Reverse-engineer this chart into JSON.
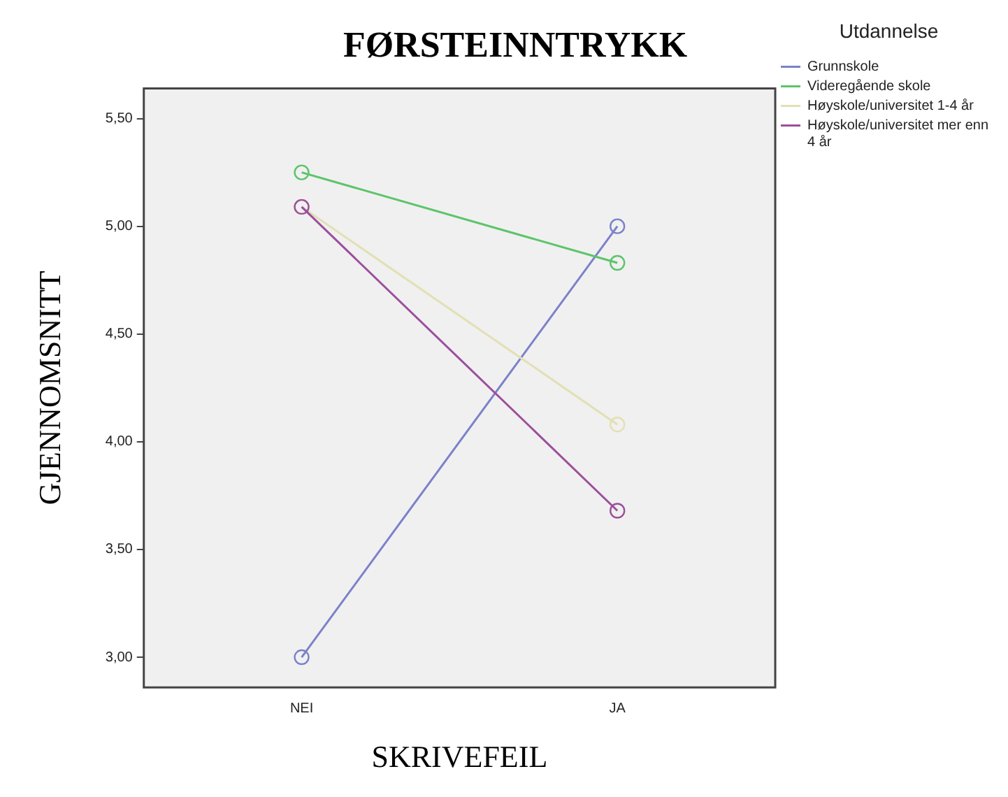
{
  "chart_data": {
    "type": "line",
    "title": "FØRSTEINNTRYKK",
    "xlabel": "SKRIVEFEIL",
    "ylabel": "GJENNOMSNITT",
    "legend_title": "Utdannelse",
    "categories": [
      "NEI",
      "JA"
    ],
    "series": [
      {
        "name": "Grunnskole",
        "color": "#7b82c9",
        "values": [
          3.0,
          5.0
        ]
      },
      {
        "name": "Videregående skole",
        "color": "#5cc46a",
        "values": [
          5.25,
          4.83
        ]
      },
      {
        "name": "Høyskole/universitet 1-4 år",
        "color": "#e2e0b4",
        "values": [
          5.09,
          4.08
        ]
      },
      {
        "name": "Høyskole/universitet mer enn 4 år",
        "color": "#9c4f9c",
        "values": [
          5.09,
          3.68
        ]
      }
    ],
    "ylim": [
      2.86,
      5.64
    ],
    "yticks": [
      {
        "value": 3,
        "label": "3,00"
      },
      {
        "value": 3.5,
        "label": "3,50"
      },
      {
        "value": 4,
        "label": "4,00"
      },
      {
        "value": 4.5,
        "label": "4,50"
      },
      {
        "value": 5,
        "label": "5,00"
      },
      {
        "value": 5.5,
        "label": "5,50"
      }
    ],
    "grid": false,
    "legend": "right",
    "marker": "circle",
    "line_style": "solid"
  }
}
